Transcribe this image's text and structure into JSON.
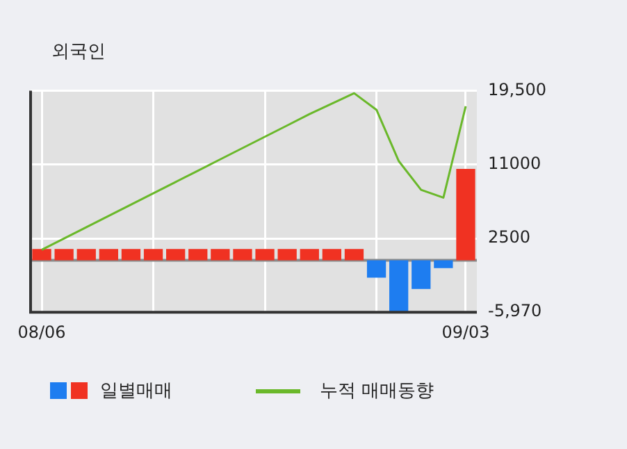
{
  "chart_data": {
    "type": "bar",
    "title": "외국인",
    "categories": [
      "08/06",
      null,
      null,
      null,
      null,
      null,
      null,
      null,
      null,
      null,
      null,
      null,
      null,
      null,
      null,
      null,
      null,
      null,
      null,
      "09/03"
    ],
    "series": [
      {
        "name": "일별매매",
        "values": [
          1300,
          1300,
          1300,
          1300,
          1300,
          1300,
          1300,
          1300,
          1300,
          1300,
          1300,
          1300,
          1300,
          1300,
          1300,
          -2000,
          -5900,
          -3300,
          -900,
          10500
        ],
        "colors": [
          "#f03222",
          "#f03222",
          "#f03222",
          "#f03222",
          "#f03222",
          "#f03222",
          "#f03222",
          "#f03222",
          "#f03222",
          "#f03222",
          "#f03222",
          "#f03222",
          "#f03222",
          "#f03222",
          "#f03222",
          "#1e7df0",
          "#1e7df0",
          "#1e7df0",
          "#1e7df0",
          "#f03222"
        ]
      },
      {
        "type": "line",
        "name": "누적 매매동향",
        "color": "#6ab82a",
        "values": [
          1200,
          2500,
          3800,
          5100,
          6400,
          7700,
          9000,
          10300,
          11600,
          12900,
          14200,
          15500,
          16800,
          18000,
          19200,
          17300,
          11400,
          8100,
          7200,
          17700
        ]
      }
    ],
    "ylim": [
      -5970,
      19500
    ],
    "yticks": [
      {
        "value": 19500,
        "label": "19,500"
      },
      11000,
      2500,
      {
        "value": -5970,
        "label": "-5,970"
      }
    ],
    "ref_lines": [
      {
        "axis": "y",
        "value": 0,
        "color": "#8a8a8a"
      }
    ],
    "grid": true,
    "legend": "bottom",
    "marker": "none"
  }
}
